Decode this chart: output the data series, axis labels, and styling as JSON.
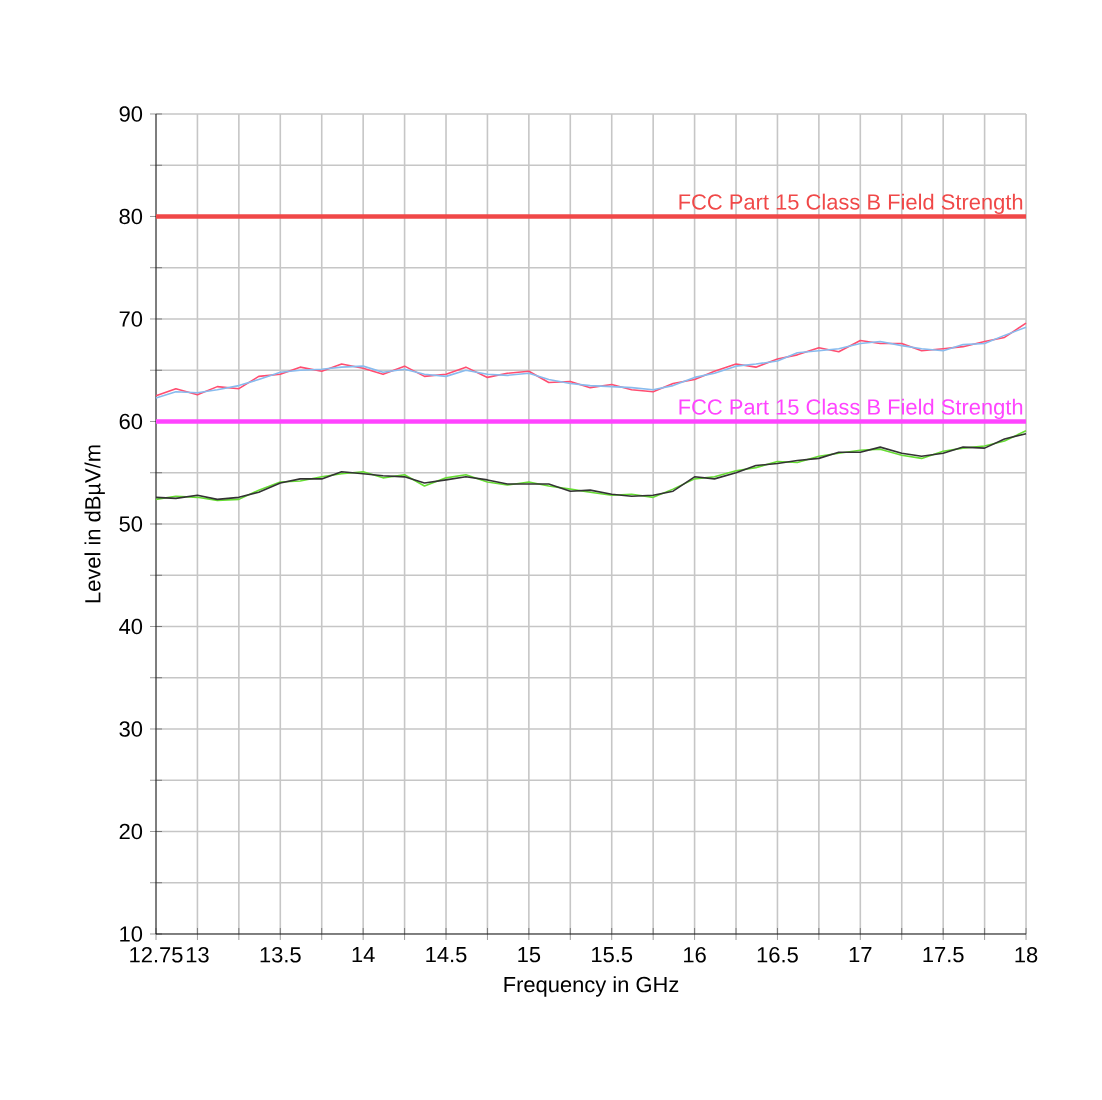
{
  "chart_data": {
    "type": "line",
    "xlabel": "Frequency in GHz",
    "ylabel": "Level in dBµV/m",
    "xlim": [
      12.75,
      18
    ],
    "ylim": [
      10,
      90
    ],
    "xticks": [
      12.75,
      13,
      {
        "value": 13.25,
        "label": null
      },
      13.5,
      {
        "value": 13.75,
        "label": null
      },
      14,
      {
        "value": 14.25,
        "label": null
      },
      14.5,
      {
        "value": 14.75,
        "label": null
      },
      15,
      {
        "value": 15.25,
        "label": null
      },
      15.5,
      {
        "value": 15.75,
        "label": null
      },
      16,
      {
        "value": 16.25,
        "label": null
      },
      16.5,
      {
        "value": 16.75,
        "label": null
      },
      17,
      {
        "value": 17.25,
        "label": null
      },
      17.5,
      {
        "value": 17.75,
        "label": null
      },
      18
    ],
    "yticks": [
      10,
      {
        "value": 15,
        "label": null
      },
      20,
      {
        "value": 25,
        "label": null
      },
      30,
      {
        "value": 35,
        "label": null
      },
      40,
      {
        "value": 45,
        "label": null
      },
      50,
      {
        "value": 55,
        "label": null
      },
      60,
      {
        "value": 65,
        "label": null
      },
      70,
      {
        "value": 75,
        "label": null
      },
      80,
      {
        "value": 85,
        "label": null
      },
      90
    ],
    "grid": true,
    "marker": "none",
    "line_style": "solid",
    "x": [
      12.75,
      12.87,
      13,
      13.12,
      13.25,
      13.37,
      13.5,
      13.62,
      13.75,
      13.87,
      14,
      14.12,
      14.25,
      14.37,
      14.5,
      14.62,
      14.75,
      14.87,
      15,
      15.12,
      15.25,
      15.37,
      15.5,
      15.62,
      15.75,
      15.87,
      16,
      16.12,
      16.25,
      16.37,
      16.5,
      16.62,
      16.75,
      16.87,
      17,
      17.12,
      17.25,
      17.37,
      17.5,
      17.62,
      17.75,
      17.87,
      18
    ],
    "series": [
      {
        "color": "#ff4d70",
        "values": [
          62.5,
          63.2,
          62.6,
          63.4,
          63.2,
          64.4,
          64.6,
          65.3,
          64.9,
          65.6,
          65.2,
          64.6,
          65.4,
          64.4,
          64.6,
          65.3,
          64.3,
          64.7,
          64.9,
          63.8,
          63.9,
          63.3,
          63.6,
          63.1,
          62.9,
          63.7,
          64.1,
          64.9,
          65.6,
          65.3,
          66.1,
          66.5,
          67.2,
          66.8,
          67.9,
          67.6,
          67.6,
          66.9,
          67.1,
          67.3,
          67.8,
          68.2,
          69.6
        ]
      },
      {
        "color": "#88bbee",
        "values": [
          62.3,
          62.9,
          62.8,
          63.1,
          63.5,
          64.1,
          64.8,
          65.0,
          65.1,
          65.3,
          65.4,
          64.8,
          65.1,
          64.6,
          64.4,
          65.0,
          64.6,
          64.5,
          64.7,
          64.1,
          63.7,
          63.5,
          63.4,
          63.3,
          63.1,
          63.5,
          64.3,
          64.7,
          65.4,
          65.6,
          65.9,
          66.7,
          66.9,
          67.1,
          67.6,
          67.8,
          67.4,
          67.1,
          66.9,
          67.5,
          67.6,
          68.4,
          69.2
        ]
      },
      {
        "color": "#66dd33",
        "values": [
          52.4,
          52.7,
          52.6,
          52.3,
          52.4,
          53.3,
          54.1,
          54.2,
          54.6,
          54.9,
          55.1,
          54.5,
          54.8,
          53.7,
          54.5,
          54.8,
          54.1,
          53.8,
          54.1,
          53.7,
          53.4,
          53.1,
          52.8,
          52.9,
          52.6,
          53.4,
          54.4,
          54.6,
          55.2,
          55.5,
          56.1,
          56.0,
          56.6,
          56.9,
          57.2,
          57.3,
          56.7,
          56.4,
          57.1,
          57.4,
          57.6,
          58.1,
          59.1
        ]
      },
      {
        "color": "#333333",
        "values": [
          52.6,
          52.5,
          52.8,
          52.4,
          52.6,
          53.1,
          54.0,
          54.4,
          54.4,
          55.1,
          54.9,
          54.7,
          54.6,
          54.0,
          54.3,
          54.6,
          54.3,
          53.9,
          53.9,
          53.9,
          53.2,
          53.3,
          52.9,
          52.7,
          52.8,
          53.2,
          54.6,
          54.4,
          55.0,
          55.7,
          55.9,
          56.2,
          56.4,
          57.0,
          57.0,
          57.5,
          56.9,
          56.6,
          56.9,
          57.5,
          57.4,
          58.3,
          58.8
        ]
      }
    ],
    "ref_lines": [
      {
        "axis": "y",
        "value": 80,
        "label": "FCC Part 15 Class B Field Strength",
        "color": "#f04848",
        "line_style": "solid"
      },
      {
        "axis": "y",
        "value": 60,
        "label": "FCC Part 15 Class B Field Strength",
        "color": "#ff44ff",
        "line_style": "solid"
      }
    ]
  }
}
